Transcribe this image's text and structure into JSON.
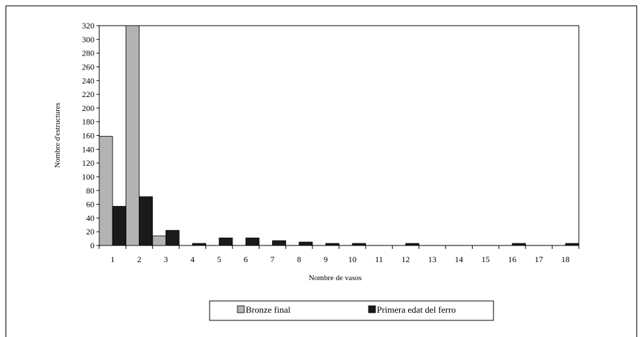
{
  "chart_data": {
    "type": "bar",
    "title": "",
    "xlabel": "Nombre de vasos",
    "ylabel": "Nombre d'estructures",
    "ylim": [
      0,
      320
    ],
    "yticks": [
      0,
      20,
      40,
      60,
      80,
      100,
      120,
      140,
      160,
      180,
      200,
      220,
      240,
      260,
      280,
      300,
      320
    ],
    "categories": [
      "1",
      "2",
      "3",
      "4",
      "5",
      "6",
      "7",
      "8",
      "9",
      "10",
      "11",
      "12",
      "13",
      "14",
      "15",
      "16",
      "17",
      "18"
    ],
    "series": [
      {
        "name": "Bronze final",
        "color": "#b3b3b3",
        "values": [
          159,
          320,
          14,
          0,
          0,
          0,
          0,
          0,
          0,
          0,
          0,
          0,
          0,
          0,
          0,
          0,
          0,
          0
        ]
      },
      {
        "name": "Primera edat del ferro",
        "color": "#1a1a1a",
        "values": [
          57,
          71,
          22,
          3,
          11,
          11,
          7,
          5,
          3,
          3,
          0,
          3,
          0,
          0,
          0,
          3,
          0,
          3
        ]
      }
    ],
    "grid": false,
    "legend": "bottom-center"
  }
}
